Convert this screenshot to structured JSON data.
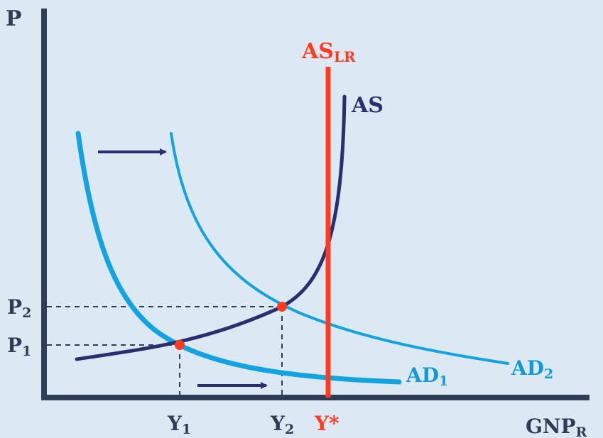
{
  "axes": {
    "y_label": "P",
    "x_label": {
      "main": "GNP",
      "sub": "R"
    }
  },
  "prices": [
    {
      "main": "P",
      "sub": "2"
    },
    {
      "main": "P",
      "sub": "1"
    }
  ],
  "outputs": [
    {
      "main": "Y",
      "sub": "1"
    },
    {
      "main": "Y",
      "sub": "2"
    }
  ],
  "potential_output": "Y*",
  "curves": {
    "as_lr": {
      "main": "AS",
      "sub": "LR"
    },
    "as": "AS",
    "ad1": {
      "main": "AD",
      "sub": "1"
    },
    "ad2": {
      "main": "AD",
      "sub": "2"
    }
  },
  "colors": {
    "background": "#dce9f3",
    "axis": "#2e3c56",
    "ad_curves": "#12a3e0",
    "ad_labels": "#1399d6",
    "as_curve": "#2b2f70",
    "as_lr": "#ff3a1f",
    "equilibrium_points": "#ff3a1f",
    "arrows": "#2b2f70"
  },
  "icons": {
    "shift_arrow_top": "arrow-right",
    "shift_arrow_bottom": "arrow-right"
  }
}
